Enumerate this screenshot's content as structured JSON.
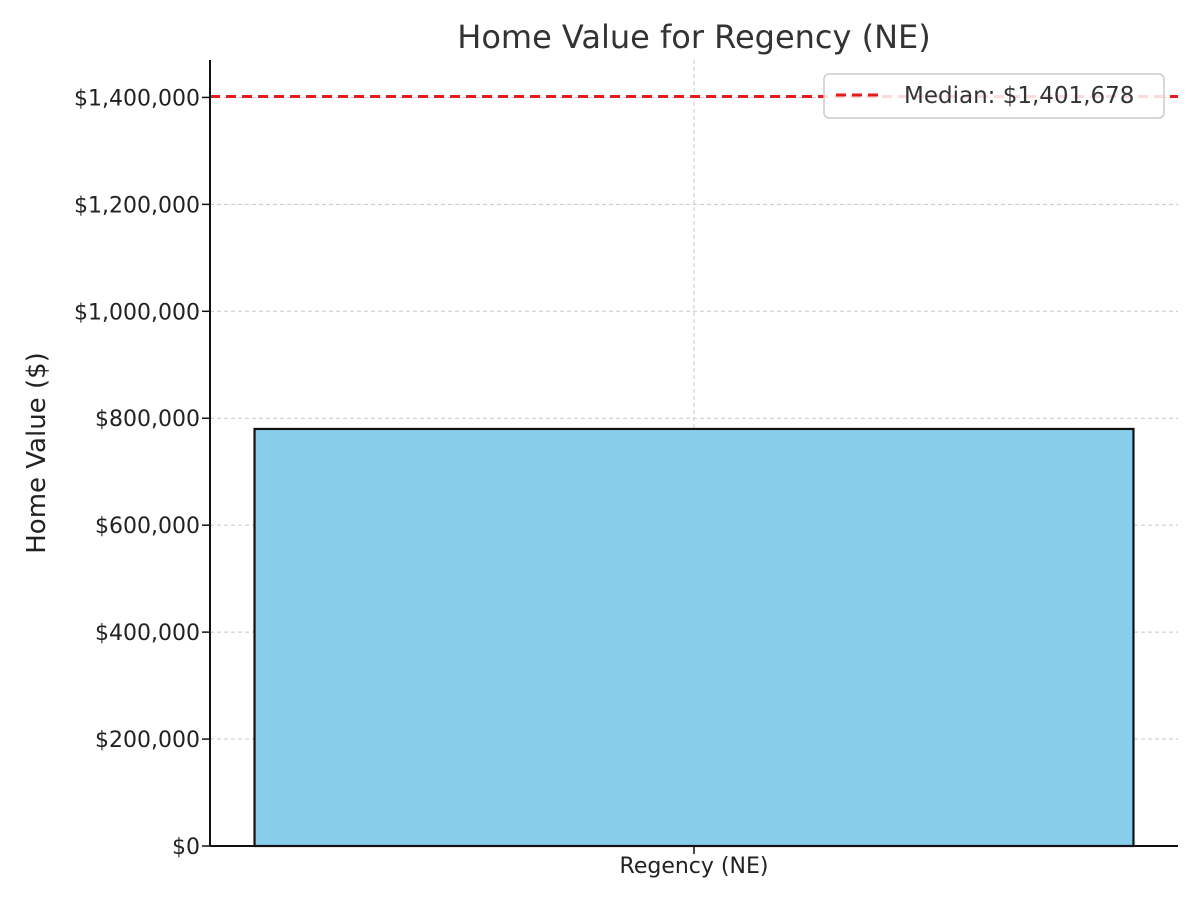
{
  "chart_data": {
    "type": "bar",
    "title": "Home Value for Regency (NE)",
    "xlabel": "",
    "ylabel": "Home Value ($)",
    "categories": [
      "Regency (NE)"
    ],
    "values": [
      780000
    ],
    "ylim": [
      0,
      1470000
    ],
    "yticks": [
      0,
      200000,
      400000,
      600000,
      800000,
      1000000,
      1200000,
      1400000
    ],
    "ytick_labels": [
      "$0",
      "$200,000",
      "$400,000",
      "$600,000",
      "$800,000",
      "$1,000,000",
      "$1,200,000",
      "$1,400,000"
    ],
    "grid": true,
    "legend_placement": "top-right",
    "bar_color": "#87CEEB",
    "bar_edge_color": "#111111",
    "reference_line": {
      "value": 1401678,
      "label": "Median: $1,401,678",
      "color": "#E41A1C",
      "style": "dashed"
    }
  }
}
